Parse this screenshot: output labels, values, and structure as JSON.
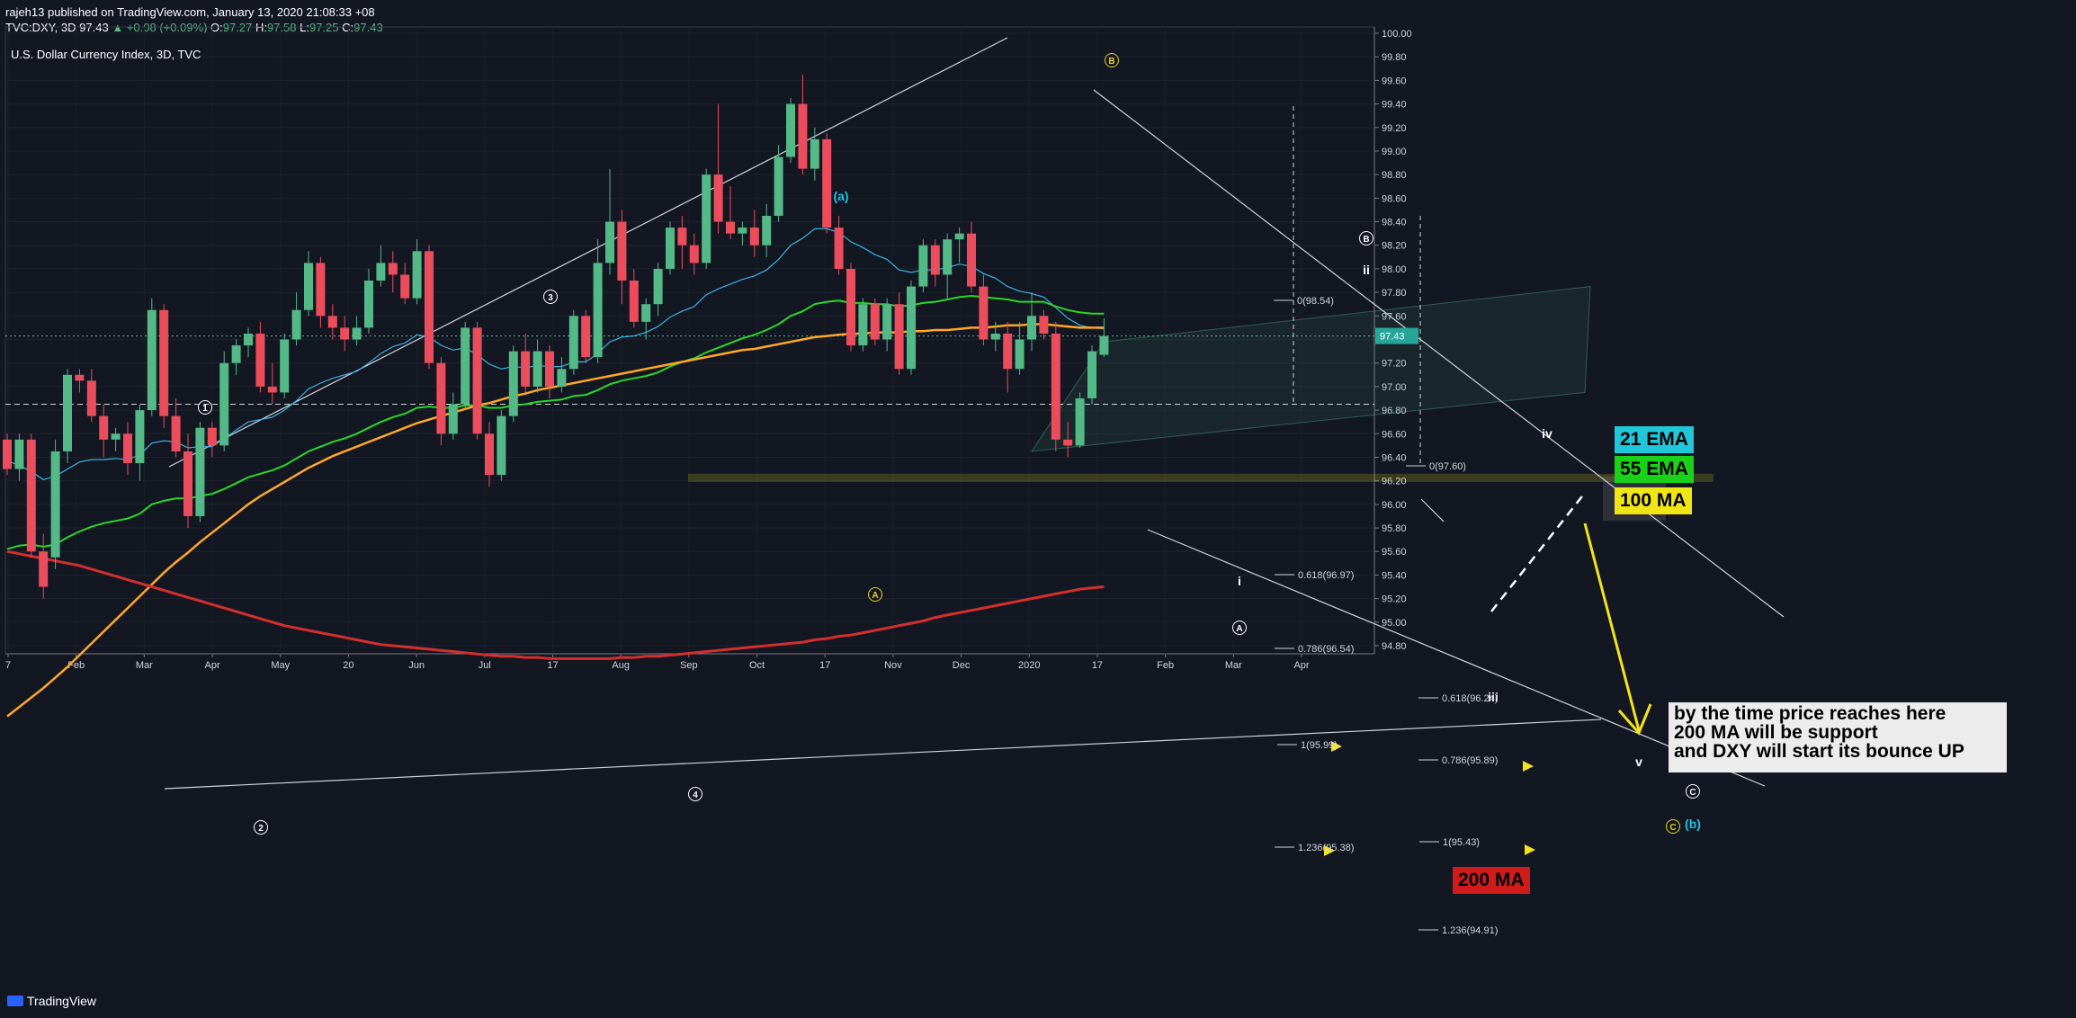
{
  "header": {
    "publisher_line": "rajeh13 published on TradingView.com, January 13, 2020 21:08:33 +08",
    "symbol": "TVC:DXY, 3D",
    "last": "97.43",
    "change": "+0.08 (+0.09%)",
    "open": "97.27",
    "high": "97.58",
    "low": "97.25",
    "close": "97.43"
  },
  "chart_title": "U.S. Dollar Currency Index, 3D, TVC",
  "footer": {
    "brand": "TradingView"
  },
  "colors": {
    "background": "#131722",
    "bull": "#53b987",
    "bear": "#eb4d5c",
    "ema21": "#3bb3e4",
    "ema55": "#2bd62b",
    "ma100": "#ffa726",
    "ma200": "#d32f2f",
    "arrow": "#f5e31a"
  },
  "chart_data": {
    "type": "candlestick",
    "title": "U.S. Dollar Currency Index, 3D, TVC",
    "ylim": [
      94.7,
      100.1
    ],
    "y_ticks": [
      "100.00",
      "99.80",
      "99.60",
      "99.40",
      "99.20",
      "99.00",
      "98.80",
      "98.60",
      "98.40",
      "98.20",
      "98.00",
      "97.80",
      "97.60",
      "97.40",
      "97.20",
      "97.00",
      "96.80",
      "96.60",
      "96.40",
      "96.20",
      "96.00",
      "95.80",
      "95.60",
      "95.40",
      "95.20",
      "95.00",
      "94.80"
    ],
    "x_ticks": [
      "7",
      "Feb",
      "Mar",
      "Apr",
      "May",
      "20",
      "Jun",
      "Jul",
      "17",
      "Aug",
      "Sep",
      "Oct",
      "17",
      "Nov",
      "Dec",
      "2020",
      "17",
      "Feb",
      "Mar",
      "Apr"
    ],
    "last_price_label": "97.43",
    "candles": [
      [
        96.55,
        96.3,
        96.6,
        96.25
      ],
      [
        96.3,
        96.55,
        96.6,
        96.2
      ],
      [
        96.55,
        95.6,
        96.6,
        95.55
      ],
      [
        95.6,
        95.3,
        95.75,
        95.2
      ],
      [
        95.55,
        96.45,
        96.55,
        95.45
      ],
      [
        96.45,
        97.1,
        97.15,
        96.35
      ],
      [
        97.1,
        97.05,
        97.15,
        96.95
      ],
      [
        97.05,
        96.75,
        97.15,
        96.7
      ],
      [
        96.75,
        96.55,
        96.85,
        96.4
      ],
      [
        96.55,
        96.6,
        96.65,
        96.45
      ],
      [
        96.6,
        96.35,
        96.7,
        96.25
      ],
      [
        96.35,
        96.8,
        96.85,
        96.2
      ],
      [
        96.8,
        97.65,
        97.75,
        96.75
      ],
      [
        97.65,
        96.75,
        97.7,
        96.65
      ],
      [
        96.75,
        96.45,
        96.9,
        96.4
      ],
      [
        96.45,
        95.9,
        96.6,
        95.8
      ],
      [
        95.9,
        96.65,
        96.7,
        95.85
      ],
      [
        96.65,
        96.5,
        96.7,
        96.4
      ],
      [
        96.5,
        97.2,
        97.3,
        96.45
      ],
      [
        97.2,
        97.35,
        97.4,
        97.1
      ],
      [
        97.35,
        97.45,
        97.5,
        97.25
      ],
      [
        97.45,
        97.0,
        97.55,
        96.95
      ],
      [
        97.0,
        96.95,
        97.2,
        96.85
      ],
      [
        96.95,
        97.4,
        97.45,
        96.9
      ],
      [
        97.4,
        97.65,
        97.8,
        97.35
      ],
      [
        97.65,
        98.05,
        98.15,
        97.6
      ],
      [
        98.05,
        97.6,
        98.1,
        97.5
      ],
      [
        97.6,
        97.5,
        97.7,
        97.4
      ],
      [
        97.5,
        97.4,
        97.6,
        97.3
      ],
      [
        97.4,
        97.5,
        97.6,
        97.35
      ],
      [
        97.5,
        97.9,
        98.0,
        97.45
      ],
      [
        97.9,
        98.05,
        98.2,
        97.85
      ],
      [
        98.05,
        97.95,
        98.15,
        97.8
      ],
      [
        97.95,
        97.75,
        98.05,
        97.7
      ],
      [
        97.75,
        98.15,
        98.25,
        97.7
      ],
      [
        98.15,
        97.2,
        98.2,
        97.15
      ],
      [
        97.2,
        96.6,
        97.25,
        96.5
      ],
      [
        96.6,
        96.85,
        96.95,
        96.55
      ],
      [
        96.85,
        97.5,
        97.55,
        96.8
      ],
      [
        97.5,
        96.6,
        97.55,
        96.55
      ],
      [
        96.6,
        96.25,
        96.7,
        96.15
      ],
      [
        96.25,
        96.75,
        96.8,
        96.2
      ],
      [
        96.75,
        97.3,
        97.35,
        96.7
      ],
      [
        97.3,
        97.0,
        97.45,
        96.95
      ],
      [
        97.0,
        97.3,
        97.4,
        96.95
      ],
      [
        97.3,
        97.0,
        97.35,
        96.9
      ],
      [
        97.0,
        97.15,
        97.25,
        96.95
      ],
      [
        97.15,
        97.6,
        97.65,
        97.1
      ],
      [
        97.6,
        97.25,
        97.65,
        97.2
      ],
      [
        97.25,
        98.05,
        98.25,
        97.2
      ],
      [
        98.05,
        98.4,
        98.85,
        97.95
      ],
      [
        98.4,
        97.9,
        98.5,
        97.7
      ],
      [
        97.9,
        97.55,
        98.0,
        97.5
      ],
      [
        97.55,
        97.7,
        97.75,
        97.4
      ],
      [
        97.7,
        98.0,
        98.05,
        97.6
      ],
      [
        98.0,
        98.35,
        98.4,
        97.95
      ],
      [
        98.35,
        98.2,
        98.45,
        98.0
      ],
      [
        98.2,
        98.05,
        98.3,
        97.95
      ],
      [
        98.05,
        98.8,
        98.85,
        98.0
      ],
      [
        98.8,
        98.4,
        99.4,
        98.3
      ],
      [
        98.4,
        98.3,
        98.7,
        98.25
      ],
      [
        98.3,
        98.35,
        98.4,
        98.2
      ],
      [
        98.35,
        98.2,
        98.5,
        98.1
      ],
      [
        98.2,
        98.45,
        98.55,
        98.1
      ],
      [
        98.45,
        98.95,
        99.05,
        98.4
      ],
      [
        98.95,
        99.4,
        99.45,
        98.9
      ],
      [
        99.4,
        98.85,
        99.65,
        98.8
      ],
      [
        98.85,
        99.1,
        99.2,
        98.75
      ],
      [
        99.1,
        98.35,
        99.15,
        98.3
      ],
      [
        98.35,
        98.0,
        98.45,
        97.95
      ],
      [
        98.0,
        97.35,
        98.05,
        97.3
      ],
      [
        97.35,
        97.7,
        97.75,
        97.3
      ],
      [
        97.7,
        97.4,
        97.75,
        97.35
      ],
      [
        97.4,
        97.7,
        97.75,
        97.3
      ],
      [
        97.7,
        97.15,
        97.8,
        97.1
      ],
      [
        97.15,
        97.85,
        97.9,
        97.1
      ],
      [
        97.85,
        98.2,
        98.25,
        97.8
      ],
      [
        98.2,
        97.95,
        98.25,
        97.85
      ],
      [
        97.95,
        98.25,
        98.3,
        97.75
      ],
      [
        98.25,
        98.3,
        98.35,
        98.05
      ],
      [
        98.3,
        97.85,
        98.4,
        97.8
      ],
      [
        97.85,
        97.4,
        97.95,
        97.35
      ],
      [
        97.4,
        97.45,
        97.55,
        97.3
      ],
      [
        97.45,
        97.15,
        97.55,
        96.95
      ],
      [
        97.15,
        97.4,
        97.55,
        97.1
      ],
      [
        97.4,
        97.6,
        97.8,
        97.3
      ],
      [
        97.6,
        97.45,
        97.65,
        97.4
      ],
      [
        97.45,
        96.55,
        97.55,
        96.45
      ],
      [
        96.55,
        96.5,
        96.7,
        96.4
      ],
      [
        96.5,
        96.9,
        96.95,
        96.48
      ],
      [
        96.9,
        97.3,
        97.35,
        96.85
      ],
      [
        97.27,
        97.43,
        97.58,
        97.25
      ]
    ],
    "moving_averages": [
      {
        "name": "21 EMA",
        "values": [
          96.37,
          96.33,
          96.28,
          96.21,
          96.24,
          96.3,
          96.36,
          96.38,
          96.38,
          96.39,
          96.38,
          96.42,
          96.52,
          96.54,
          96.53,
          96.48,
          96.49,
          96.49,
          96.56,
          96.63,
          96.7,
          96.72,
          96.74,
          96.8,
          96.88,
          96.98,
          97.03,
          97.07,
          97.1,
          97.13,
          97.2,
          97.28,
          97.34,
          97.37,
          97.44,
          97.42,
          97.35,
          97.31,
          97.33,
          97.27,
          97.19,
          97.15,
          97.17,
          97.16,
          97.18,
          97.17,
          97.17,
          97.21,
          97.21,
          97.28,
          97.38,
          97.42,
          97.43,
          97.46,
          97.51,
          97.59,
          97.64,
          97.68,
          97.78,
          97.83,
          97.87,
          97.91,
          97.94,
          97.99,
          98.08,
          98.2,
          98.26,
          98.34,
          98.34,
          98.31,
          98.23,
          98.18,
          98.12,
          98.08,
          97.99,
          97.97,
          97.99,
          97.99,
          98.01,
          98.04,
          98.02,
          97.96,
          97.92,
          97.85,
          97.81,
          97.79,
          97.76,
          97.67,
          97.58,
          97.52,
          97.5,
          97.49
        ]
      },
      {
        "name": "55 EMA",
        "values": [
          95.62,
          95.65,
          95.66,
          95.64,
          95.66,
          95.72,
          95.77,
          95.81,
          95.84,
          95.86,
          95.88,
          95.92,
          96.0,
          96.03,
          96.05,
          96.05,
          96.07,
          96.09,
          96.13,
          96.18,
          96.23,
          96.26,
          96.29,
          96.33,
          96.39,
          96.45,
          96.49,
          96.53,
          96.56,
          96.6,
          96.65,
          96.7,
          96.74,
          96.77,
          96.82,
          96.83,
          96.82,
          96.82,
          96.84,
          96.84,
          96.82,
          96.82,
          96.84,
          96.85,
          96.87,
          96.88,
          96.89,
          96.92,
          96.93,
          96.97,
          97.02,
          97.05,
          97.07,
          97.09,
          97.12,
          97.17,
          97.21,
          97.24,
          97.29,
          97.33,
          97.37,
          97.41,
          97.44,
          97.48,
          97.53,
          97.6,
          97.64,
          97.7,
          97.72,
          97.73,
          97.71,
          97.71,
          97.7,
          97.7,
          97.68,
          97.69,
          97.71,
          97.72,
          97.74,
          97.76,
          97.77,
          97.76,
          97.75,
          97.74,
          97.72,
          97.72,
          97.72,
          97.68,
          97.65,
          97.63,
          97.62,
          97.62
        ]
      },
      {
        "name": "100 MA",
        "values": [
          94.2,
          94.28,
          94.36,
          94.44,
          94.53,
          94.62,
          94.72,
          94.82,
          94.92,
          95.02,
          95.12,
          95.22,
          95.32,
          95.42,
          95.51,
          95.59,
          95.68,
          95.76,
          95.84,
          95.92,
          96.0,
          96.07,
          96.13,
          96.19,
          96.25,
          96.31,
          96.36,
          96.41,
          96.45,
          96.49,
          96.53,
          96.57,
          96.61,
          96.65,
          96.69,
          96.72,
          96.75,
          96.78,
          96.81,
          96.84,
          96.86,
          96.89,
          96.92,
          96.94,
          96.97,
          96.99,
          97.01,
          97.03,
          97.05,
          97.07,
          97.09,
          97.11,
          97.13,
          97.15,
          97.17,
          97.19,
          97.21,
          97.23,
          97.25,
          97.27,
          97.29,
          97.31,
          97.32,
          97.34,
          97.36,
          97.38,
          97.4,
          97.42,
          97.43,
          97.44,
          97.45,
          97.45,
          97.46,
          97.46,
          97.46,
          97.47,
          97.47,
          97.48,
          97.48,
          97.49,
          97.5,
          97.5,
          97.51,
          97.52,
          97.52,
          97.53,
          97.53,
          97.52,
          97.51,
          97.5,
          97.5,
          97.5
        ]
      },
      {
        "name": "200 MA",
        "values": [
          95.6,
          95.58,
          95.56,
          95.54,
          95.52,
          95.5,
          95.48,
          95.45,
          95.42,
          95.39,
          95.36,
          95.33,
          95.3,
          95.27,
          95.24,
          95.21,
          95.18,
          95.15,
          95.12,
          95.09,
          95.06,
          95.03,
          95.0,
          94.97,
          94.95,
          94.93,
          94.91,
          94.89,
          94.87,
          94.85,
          94.83,
          94.81,
          94.8,
          94.79,
          94.78,
          94.77,
          94.76,
          94.75,
          94.74,
          94.73,
          94.72,
          94.71,
          94.71,
          94.7,
          94.7,
          94.69,
          94.69,
          94.69,
          94.69,
          94.69,
          94.69,
          94.7,
          94.7,
          94.71,
          94.71,
          94.72,
          94.73,
          94.74,
          94.75,
          94.76,
          94.77,
          94.78,
          94.79,
          94.8,
          94.81,
          94.82,
          94.83,
          94.85,
          94.86,
          94.88,
          94.89,
          94.91,
          94.93,
          94.95,
          94.97,
          94.99,
          95.01,
          95.04,
          95.06,
          95.08,
          95.1,
          95.12,
          95.14,
          95.16,
          95.18,
          95.2,
          95.22,
          95.24,
          95.26,
          95.28,
          95.29,
          95.3
        ]
      }
    ],
    "ma_labels": {
      "ema21": "21 EMA",
      "ema55": "55 EMA",
      "ma100": "100 MA",
      "ma200": "200 MA"
    },
    "wave_labels": [
      "1",
      "2",
      "3",
      "4",
      "(a)",
      "B",
      "A",
      "B",
      "ii",
      "i",
      "A",
      "iii",
      "iv",
      "v",
      "C",
      "C",
      "(b)"
    ],
    "fib_labels": [
      "0(98.54)",
      "0.618(96.97)",
      "0.786(96.54)",
      "1(95.99)",
      "1.236(95.38)",
      "0(97.60)",
      "0.618(96.24)",
      "0.786(95.89)",
      "1(95.43)",
      "1.236(94.91)"
    ],
    "annotation": [
      "by the time price reaches here",
      "200 MA will be support",
      "and DXY will start its bounce UP"
    ],
    "grid": true
  }
}
